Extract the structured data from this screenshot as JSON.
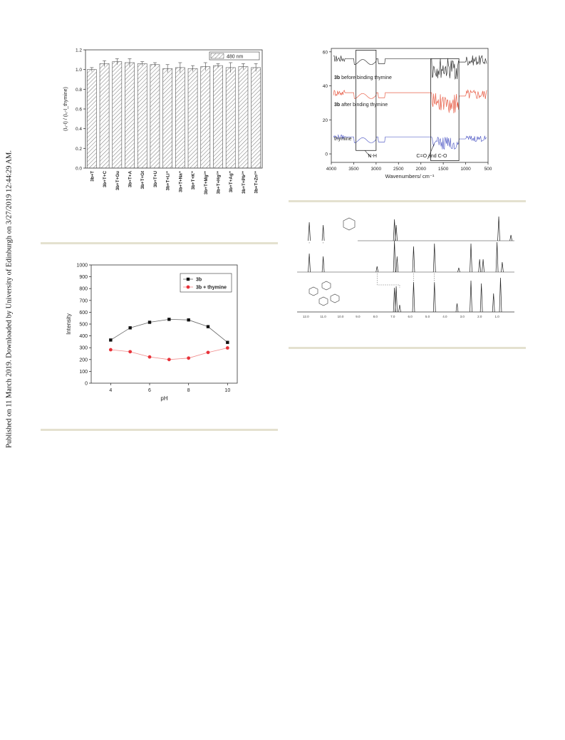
{
  "sidebar_text": "Published on 11 March 2019. Downloaded by University of Edinburgh on 3/27/2019 12:44:29 AM.",
  "chart_data": [
    {
      "type": "bar",
      "ylabel": "(I₀-I) / (I₀-I_thymine)",
      "legend": [
        "480 nm"
      ],
      "ylim": [
        0.0,
        1.2
      ],
      "yticks": [
        "0.0",
        "0.2",
        "0.4",
        "0.6",
        "0.8",
        "1.0",
        "1.2"
      ],
      "categories": [
        "3b+T",
        "3b+T+C",
        "3b+T+Gu",
        "3b+T+A",
        "3b+T+Gt",
        "3b+T+U",
        "3b+T+Li⁺",
        "3b+T+Na⁺",
        "3b+T+K⁺",
        "3b+T+Mg²⁺",
        "3b+T+Hg²⁺",
        "3b+T+Ag⁺",
        "3b+T+Pb²⁺",
        "3b+T+Zn²⁺"
      ],
      "values": [
        1.0,
        1.06,
        1.08,
        1.07,
        1.06,
        1.05,
        1.01,
        1.02,
        1.01,
        1.03,
        1.04,
        1.02,
        1.03,
        1.02
      ],
      "errors": [
        0.02,
        0.03,
        0.03,
        0.04,
        0.02,
        0.02,
        0.04,
        0.05,
        0.03,
        0.04,
        0.02,
        0.05,
        0.03,
        0.04
      ],
      "legend_position": "top-right"
    },
    {
      "type": "line",
      "xlabel": "Wavenumbers/ cm⁻¹",
      "xticks": [
        "4000",
        "3500",
        "3000",
        "2500",
        "2000",
        "1500",
        "1000",
        "500"
      ],
      "yticks": [
        "0",
        "20",
        "40",
        "60"
      ],
      "xlim": [
        4000,
        500
      ],
      "ylim": [
        -5,
        62
      ],
      "series": [
        {
          "name": "before binding thymine",
          "bold": "3b",
          "color": "#333333",
          "offset": 56
        },
        {
          "name": "after binding thymine",
          "bold": "3b",
          "color": "#e8604a",
          "offset": 36
        },
        {
          "name": "thymine",
          "bold": "",
          "color": "#5a63c8",
          "offset": 10
        }
      ],
      "annotations": [
        "N-H",
        "C=O and C-O"
      ]
    },
    {
      "type": "nmr-stack",
      "xticks": [
        "12.0",
        "11.0",
        "10.0",
        "9.0",
        "8.0",
        "7.0",
        "6.0",
        "5.0",
        "4.0",
        "3.0",
        "2.0",
        "1.0"
      ],
      "traces": 3
    },
    {
      "type": "line",
      "xlabel": "pH",
      "ylabel": "Intensity",
      "xlim": [
        3,
        10.5
      ],
      "ylim": [
        0,
        1000
      ],
      "xticks": [
        4,
        6,
        8,
        10
      ],
      "yticks": [
        0,
        100,
        200,
        300,
        400,
        500,
        600,
        700,
        800,
        900,
        1000
      ],
      "x": [
        4,
        5,
        6,
        7,
        8,
        9,
        10
      ],
      "series": [
        {
          "name": "3b",
          "values": [
            365,
            468,
            515,
            540,
            535,
            478,
            345
          ],
          "color": "#111111",
          "marker": "square"
        },
        {
          "name": "3b + thymine",
          "values": [
            283,
            266,
            222,
            200,
            212,
            260,
            298
          ],
          "color": "#e8333a",
          "marker": "circle"
        }
      ],
      "legend_position": "top-right"
    }
  ]
}
